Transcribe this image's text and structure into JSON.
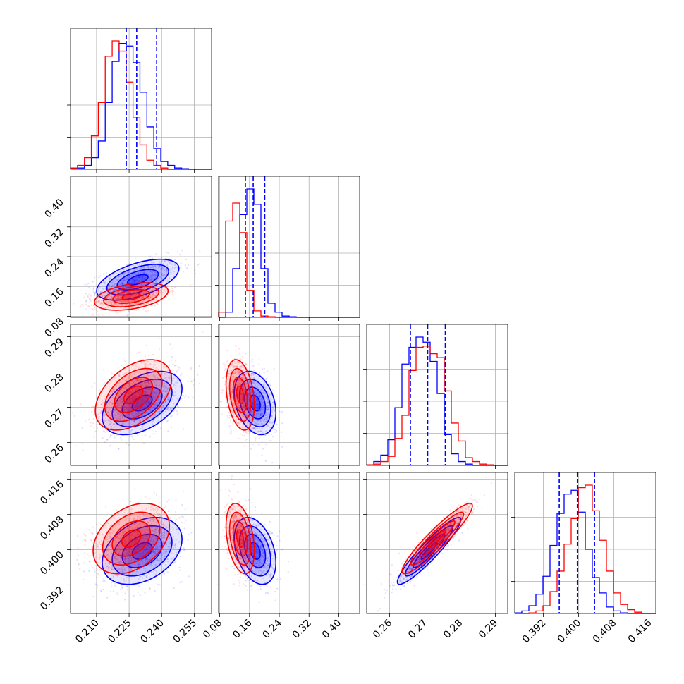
{
  "colors": {
    "red": "#ff0000",
    "blue": "#0000ff",
    "grid": "#b0b0b0"
  },
  "chart_data": {
    "type": "corner",
    "grid": true,
    "parameters": [
      {
        "range": [
          0.198,
          0.263
        ],
        "ticks": [
          0.21,
          0.225,
          0.24,
          0.255
        ],
        "tick_labels": [
          "0.210",
          "0.225",
          "0.240",
          "0.255"
        ]
      },
      {
        "range": [
          0.077,
          0.456
        ],
        "ticks": [
          0.08,
          0.16,
          0.24,
          0.32,
          0.4
        ],
        "tick_labels": [
          "0.08",
          "0.16",
          "0.24",
          "0.32",
          "0.40"
        ]
      },
      {
        "range": [
          0.2535,
          0.2935
        ],
        "ticks": [
          0.26,
          0.27,
          0.28,
          0.29
        ],
        "tick_labels": [
          "0.26",
          "0.27",
          "0.28",
          "0.29"
        ]
      },
      {
        "range": [
          0.3855,
          0.4175
        ],
        "ticks": [
          0.392,
          0.4,
          0.408,
          0.416
        ],
        "tick_labels": [
          "0.392",
          "0.400",
          "0.408",
          "0.416"
        ]
      }
    ],
    "histograms": [
      {
        "bins": [
          0.198,
          0.2012,
          0.2044,
          0.2076,
          0.2108,
          0.214,
          0.2172,
          0.2204,
          0.2236,
          0.2268,
          0.23,
          0.2332,
          0.2364,
          0.2396,
          0.2428,
          0.246,
          0.2492,
          0.2524,
          0.2556,
          0.2588,
          0.263
        ],
        "series": [
          {
            "color": "blue",
            "counts": [
              0.005,
              0.01,
              0.03,
              0.09,
              0.22,
              0.52,
              0.84,
              0.98,
              0.96,
              0.83,
              0.6,
              0.33,
              0.16,
              0.06,
              0.03,
              0.01,
              0.005,
              0,
              0,
              0
            ]
          },
          {
            "color": "red",
            "counts": [
              0.01,
              0.03,
              0.09,
              0.26,
              0.52,
              0.88,
              1.0,
              0.92,
              0.68,
              0.4,
              0.19,
              0.07,
              0.03,
              0.01,
              0,
              0,
              0,
              0,
              0,
              0
            ]
          }
        ],
        "quantile_lines": [
          0.2237,
          0.2285,
          0.2377
        ]
      },
      {
        "bins": [
          0.077,
          0.09595,
          0.1149,
          0.13385,
          0.1528,
          0.17175,
          0.1907,
          0.20965,
          0.2286,
          0.24755,
          0.2665,
          0.28545,
          0.3044,
          0.32335,
          0.3423,
          0.36125,
          0.3802,
          0.39915,
          0.4181,
          0.43705,
          0.456
        ],
        "series": [
          {
            "color": "blue",
            "counts": [
              0,
              0.04,
              0.38,
              0.8,
              1.0,
              0.88,
              0.38,
              0.11,
              0.04,
              0.01,
              0.005,
              0,
              0,
              0,
              0,
              0,
              0,
              0,
              0,
              0
            ]
          },
          {
            "color": "red",
            "counts": [
              0.04,
              0.75,
              0.89,
              0.66,
              0.21,
              0.05,
              0.01,
              0.005,
              0,
              0,
              0,
              0,
              0,
              0,
              0,
              0,
              0,
              0,
              0,
              0
            ]
          }
        ],
        "quantile_lines": [
          0.149,
          0.17,
          0.201
        ]
      },
      {
        "bins": [
          0.2535,
          0.2555,
          0.2575,
          0.2595,
          0.2615,
          0.2635,
          0.2655,
          0.2675,
          0.2695,
          0.2715,
          0.2735,
          0.2755,
          0.2775,
          0.2795,
          0.2815,
          0.2835,
          0.2855,
          0.2875,
          0.2895,
          0.2915,
          0.2935
        ],
        "series": [
          {
            "color": "blue",
            "counts": [
              0.005,
              0.03,
              0.08,
              0.2,
              0.45,
              0.79,
              0.92,
              1.0,
              0.96,
              0.81,
              0.56,
              0.24,
              0.09,
              0.03,
              0.01,
              0,
              0,
              0,
              0,
              0
            ]
          },
          {
            "color": "red",
            "counts": [
              0.005,
              0.01,
              0.03,
              0.07,
              0.21,
              0.39,
              0.74,
              0.92,
              0.93,
              0.87,
              0.84,
              0.58,
              0.33,
              0.19,
              0.06,
              0.03,
              0.01,
              0.005,
              0,
              0
            ]
          }
        ],
        "quantile_lines": [
          0.2659,
          0.2708,
          0.2758
        ]
      },
      {
        "bins": [
          0.3855,
          0.3871,
          0.3887,
          0.3903,
          0.3919,
          0.3935,
          0.3951,
          0.3967,
          0.3983,
          0.3999,
          0.4015,
          0.4031,
          0.4047,
          0.4063,
          0.4079,
          0.4095,
          0.4111,
          0.4127,
          0.4143,
          0.4159,
          0.4175
        ],
        "series": [
          {
            "color": "blue",
            "counts": [
              0.005,
              0.02,
              0.06,
              0.15,
              0.29,
              0.53,
              0.78,
              0.93,
              0.96,
              0.79,
              0.5,
              0.28,
              0.16,
              0.05,
              0.02,
              0.005,
              0,
              0,
              0,
              0
            ]
          },
          {
            "color": "red",
            "counts": [
              0,
              0,
              0.005,
              0.02,
              0.06,
              0.17,
              0.33,
              0.54,
              0.74,
              0.98,
              1.0,
              0.8,
              0.57,
              0.33,
              0.16,
              0.07,
              0.03,
              0.01,
              0,
              0
            ]
          }
        ],
        "quantile_lines": [
          0.3956,
          0.3997,
          0.4036
        ]
      }
    ],
    "scatter_panels": [
      {
        "x_param": 0,
        "y_param": 1,
        "distributions": [
          {
            "color": "blue",
            "mean": [
              0.229,
              0.178
            ],
            "sd": [
              0.0095,
              0.0275
            ],
            "rho": 0.55
          },
          {
            "color": "red",
            "mean": [
              0.226,
              0.133
            ],
            "sd": [
              0.0085,
              0.0185
            ],
            "rho": 0.4
          }
        ]
      },
      {
        "x_param": 0,
        "y_param": 2,
        "distributions": [
          {
            "color": "blue",
            "mean": [
              0.231,
              0.2712
            ],
            "sd": [
              0.0092,
              0.0045
            ],
            "rho": 0.45
          },
          {
            "color": "red",
            "mean": [
              0.227,
              0.2735
            ],
            "sd": [
              0.0088,
              0.005
            ],
            "rho": 0.45
          }
        ]
      },
      {
        "x_param": 1,
        "y_param": 2,
        "distributions": [
          {
            "color": "blue",
            "mean": [
              0.175,
              0.2712
            ],
            "sd": [
              0.028,
              0.0045
            ],
            "rho": -0.3
          },
          {
            "color": "red",
            "mean": [
              0.135,
              0.2735
            ],
            "sd": [
              0.019,
              0.005
            ],
            "rho": -0.3
          }
        ]
      },
      {
        "x_param": 0,
        "y_param": 3,
        "distributions": [
          {
            "color": "blue",
            "mean": [
              0.231,
              0.3997
            ],
            "sd": [
              0.0092,
              0.0038
            ],
            "rho": 0.35
          },
          {
            "color": "red",
            "mean": [
              0.226,
              0.4025
            ],
            "sd": [
              0.0088,
              0.004
            ],
            "rho": 0.35
          }
        ]
      },
      {
        "x_param": 1,
        "y_param": 3,
        "distributions": [
          {
            "color": "blue",
            "mean": [
              0.175,
              0.3997
            ],
            "sd": [
              0.028,
              0.0038
            ],
            "rho": -0.35
          },
          {
            "color": "red",
            "mean": [
              0.135,
              0.4025
            ],
            "sd": [
              0.019,
              0.004
            ],
            "rho": -0.35
          }
        ]
      },
      {
        "x_param": 2,
        "y_param": 3,
        "distributions": [
          {
            "color": "blue",
            "mean": [
              0.2712,
              0.3997
            ],
            "sd": [
              0.0045,
              0.0038
            ],
            "rho": 0.93
          },
          {
            "color": "red",
            "mean": [
              0.2735,
              0.4025
            ],
            "sd": [
              0.005,
              0.004
            ],
            "rho": 0.93
          }
        ]
      }
    ]
  }
}
